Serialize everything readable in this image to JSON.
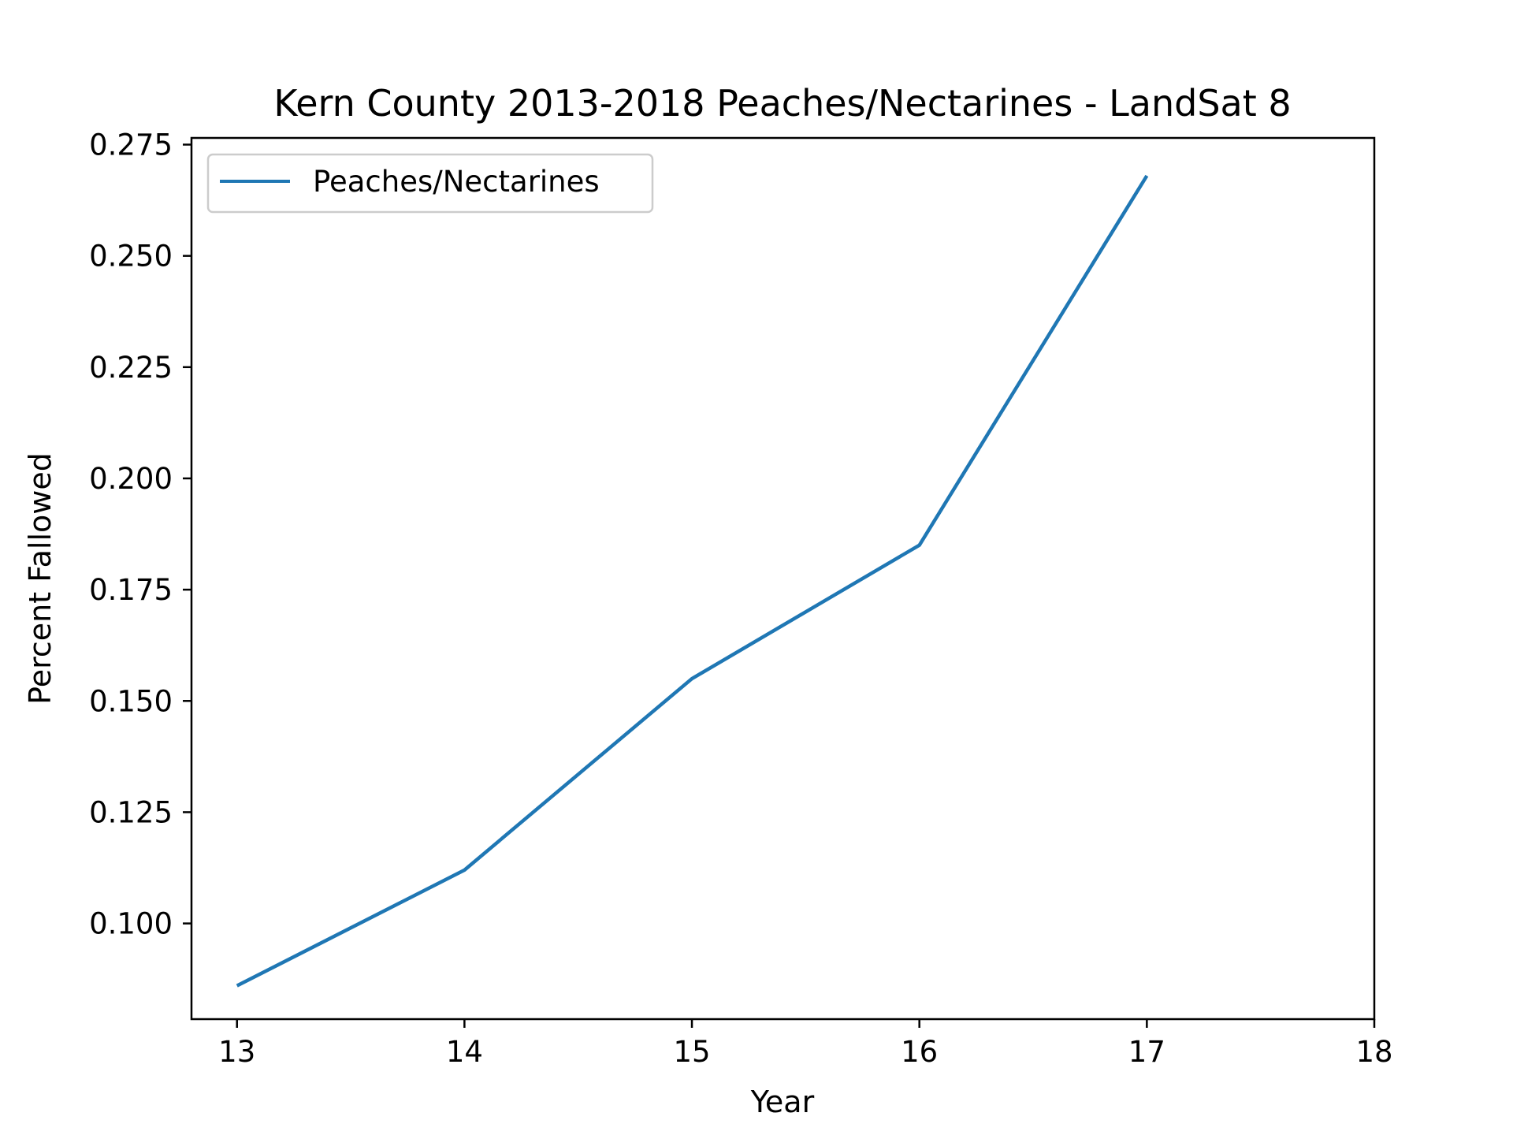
{
  "chart_data": {
    "type": "line",
    "title": "Kern County 2013-2018 Peaches/Nectarines - LandSat 8",
    "xlabel": "Year",
    "ylabel": "Percent Fallowed",
    "x_ticks": [
      "13",
      "14",
      "15",
      "16",
      "17",
      "18"
    ],
    "y_ticks": [
      "0.100",
      "0.125",
      "0.150",
      "0.175",
      "0.200",
      "0.225",
      "0.250",
      "0.275"
    ],
    "xlim": [
      12.8,
      18
    ],
    "ylim": [
      0.0785,
      0.2765
    ],
    "grid": false,
    "legend_position": "upper-left",
    "series": [
      {
        "name": "Peaches/Nectarines",
        "color": "#1f77b4",
        "x": [
          13,
          14,
          15,
          16,
          17
        ],
        "y": [
          0.086,
          0.112,
          0.155,
          0.185,
          0.268
        ]
      }
    ]
  }
}
